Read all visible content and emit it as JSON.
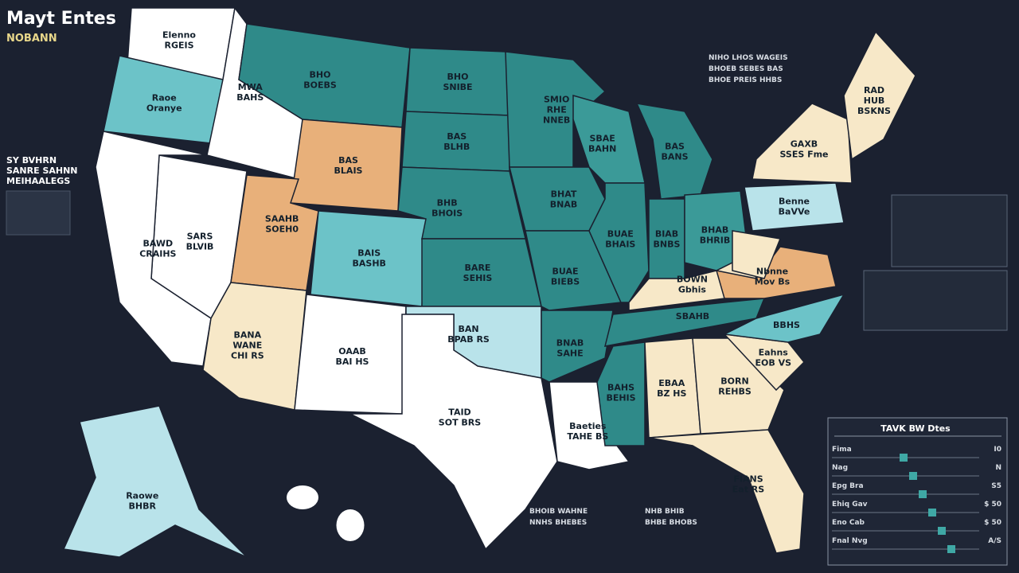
{
  "header": {
    "title": "Mayt Entes",
    "subtitle": "NOBANN"
  },
  "regions": [
    {
      "lines": [
        "Elenno",
        "RGEIS"
      ],
      "color": "#ffffff"
    },
    {
      "lines": [
        "Raoe",
        "Oranye"
      ],
      "color": "#6cc3c8"
    },
    {
      "lines": [
        "MWA",
        "BAHS"
      ],
      "color": "#ffffff"
    },
    {
      "lines": [
        "BHO",
        "BOEBS"
      ],
      "color": "#2f8a89"
    },
    {
      "lines": [
        "BAS",
        "BLAIS"
      ],
      "color": "#e8b07a"
    },
    {
      "lines": [
        "SARS",
        "BLVIB"
      ],
      "color": "#ffffff"
    },
    {
      "lines": [
        "BAWD",
        "CRAIHS"
      ],
      "color": "#ffffff"
    },
    {
      "lines": [
        "SAAHB",
        "SOEH0"
      ],
      "color": "#e8b07a"
    },
    {
      "lines": [
        "BAIS",
        "BASHB"
      ],
      "color": "#6cc3c8"
    },
    {
      "lines": [
        "BANA",
        "WANE",
        "CHI RS"
      ],
      "color": "#f7e8c8"
    },
    {
      "lines": [
        "OAAB",
        "BAI HS"
      ],
      "color": "#ffffff"
    },
    {
      "lines": [
        "BHO",
        "SNIBE"
      ],
      "color": "#2f8a89"
    },
    {
      "lines": [
        "BAS",
        "BLHB"
      ],
      "color": "#2f8a89"
    },
    {
      "lines": [
        "BHB",
        "BHOIS"
      ],
      "color": "#2f8a89"
    },
    {
      "lines": [
        "BARE",
        "SEHIS"
      ],
      "color": "#2f8a89"
    },
    {
      "lines": [
        "BAN",
        "BPAB RS"
      ],
      "color": "#b9e3ea"
    },
    {
      "lines": [
        "TAID",
        "SOT BRS"
      ],
      "color": "#ffffff"
    },
    {
      "lines": [
        "SMIO",
        "RHE",
        "NNEB"
      ],
      "color": "#2f8a89"
    },
    {
      "lines": [
        "BHAT",
        "BNAB"
      ],
      "color": "#2f8a89"
    },
    {
      "lines": [
        "BUAE",
        "BIEBS"
      ],
      "color": "#2f8a89"
    },
    {
      "lines": [
        "BNAB",
        "SAHE"
      ],
      "color": "#2f8a89"
    },
    {
      "lines": [
        "Baeties",
        "TAHE BS"
      ],
      "color": "#ffffff"
    },
    {
      "lines": [
        "SBAE",
        "BAHN"
      ],
      "color": "#3b9a98"
    },
    {
      "lines": [
        "BUAE",
        "BHAIS"
      ],
      "color": "#2f8a89"
    },
    {
      "lines": [
        "BAS",
        "BANS"
      ],
      "color": "#2f8a89"
    },
    {
      "lines": [
        "BIAB",
        "BNBS"
      ],
      "color": "#2f8a89"
    },
    {
      "lines": [
        "BHAB",
        "BHRIB"
      ],
      "color": "#3b9a98"
    },
    {
      "lines": [
        "BOWN",
        "Gbhis"
      ],
      "color": "#f7e8c8"
    },
    {
      "lines": [
        "SBAHB"
      ],
      "color": "#2f8a89"
    },
    {
      "lines": [
        "BAHS",
        "BEHIS"
      ],
      "color": "#2f8a89"
    },
    {
      "lines": [
        "EBAA",
        "BZ HS"
      ],
      "color": "#f7e8c8"
    },
    {
      "lines": [
        "BORN",
        "REHBS"
      ],
      "color": "#f7e8c8"
    },
    {
      "lines": [
        "FIANS",
        "Eat RS"
      ],
      "color": "#f7e8c8"
    },
    {
      "lines": [
        "Eahns",
        "EOB VS"
      ],
      "color": "#f7e8c8"
    },
    {
      "lines": [
        "BBHS"
      ],
      "color": "#6cc3c8"
    },
    {
      "lines": [
        "Nbnne",
        "Mov Bs"
      ],
      "color": "#e8b07a"
    },
    {
      "lines": [],
      "color": "#f7e8c8"
    },
    {
      "lines": [
        "Benne",
        "BaVVe"
      ],
      "color": "#b9e3ea"
    },
    {
      "lines": [
        "GAXB",
        "SSES Fme"
      ],
      "color": "#f7e8c8"
    },
    {
      "lines": [
        "RAD",
        "HUB",
        "BSKNS"
      ],
      "color": "#f7e8c8"
    },
    {
      "lines": [
        "Raowe",
        "BHBR"
      ],
      "color": "#b9e3ea"
    }
  ],
  "left_notes": [
    "SY BVHRN",
    "SANRE SAHNN",
    "MEIHAALEGS"
  ],
  "right_notes": [
    "NIHO LHOS WAGEIS",
    "BHOEB SEBES BAS",
    "BHOE PREIS HHBS"
  ],
  "bottom_notes": [
    "BHOIB WAHNE",
    "NNHS BHEBES",
    "NHB BHIB",
    "BHBE BHOBS"
  ],
  "legend": {
    "title": "TAVK BW Dtes",
    "rows": [
      [
        "Fima",
        "I0"
      ],
      [
        "Nag",
        "N"
      ],
      [
        "Epg Bra",
        "S5"
      ],
      [
        "Ehiq Gav",
        "$ 50"
      ],
      [
        "Eno Cab",
        "$ 50"
      ],
      [
        "Fnal Nvg",
        "A/S"
      ]
    ]
  }
}
